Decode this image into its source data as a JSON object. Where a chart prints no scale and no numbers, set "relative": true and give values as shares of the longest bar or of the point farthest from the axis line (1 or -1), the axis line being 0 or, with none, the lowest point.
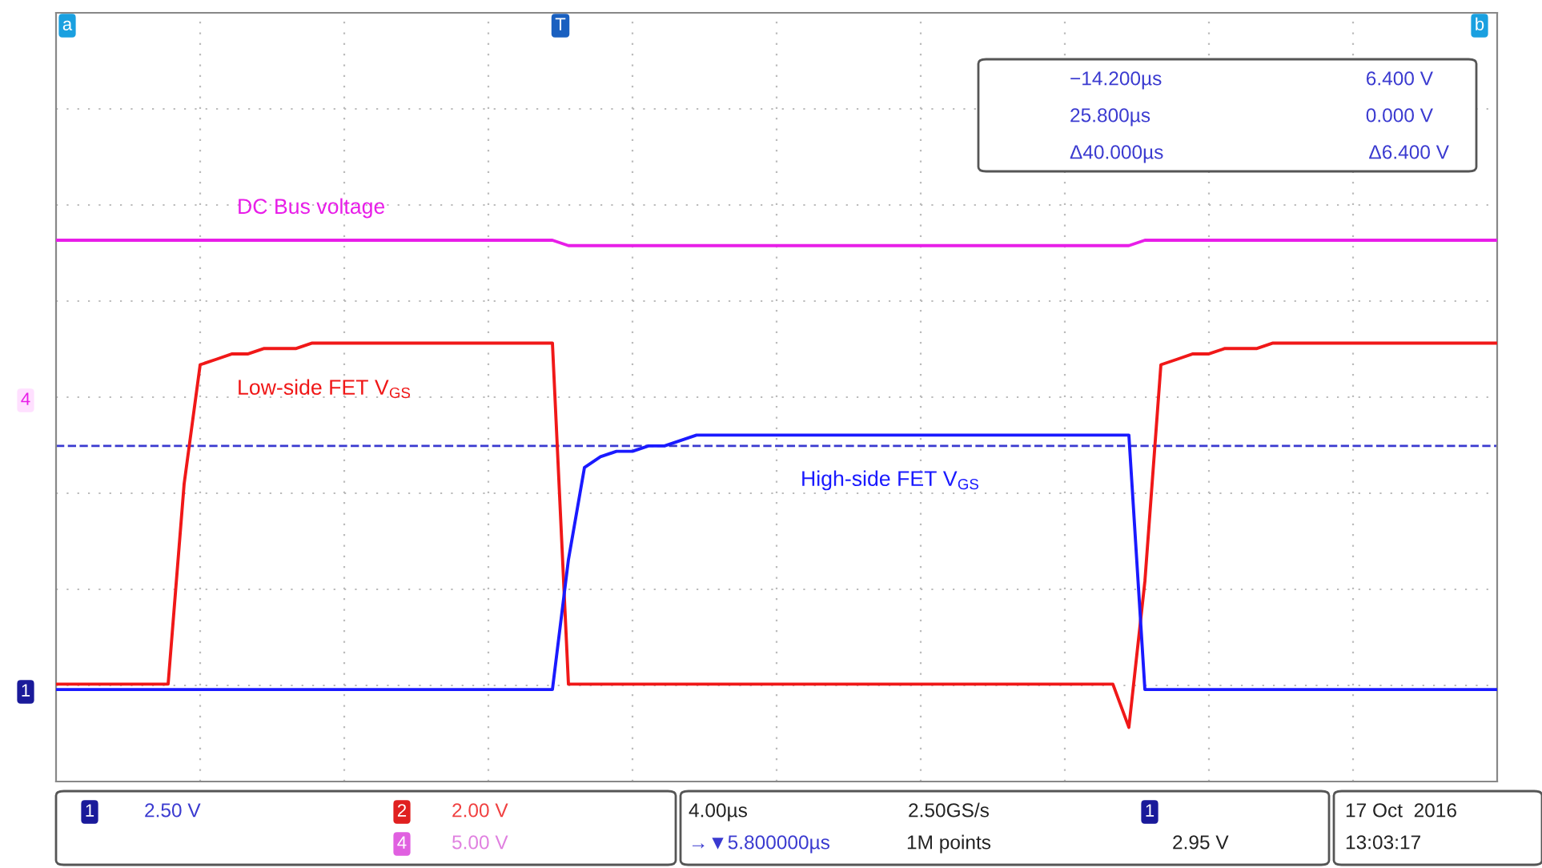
{
  "chart_data": {
    "type": "line",
    "relative": true,
    "grid": true,
    "line_style": "solid",
    "marker": "none",
    "categories": [
      null,
      null,
      null,
      null,
      null,
      null,
      null,
      null,
      null,
      null,
      null,
      null,
      null,
      null,
      null,
      null,
      null,
      null,
      null,
      null,
      null,
      null,
      null,
      null,
      null,
      null,
      null,
      null,
      null,
      null,
      null,
      null,
      null,
      null,
      null,
      null,
      null,
      null,
      null,
      null,
      null,
      null,
      null,
      null,
      null,
      null,
      null,
      null,
      null,
      null,
      null,
      null,
      null,
      null,
      null,
      null,
      null,
      null,
      null,
      null,
      null,
      null,
      null,
      null,
      null,
      null,
      null,
      null,
      null,
      null,
      null,
      null,
      null,
      null,
      null,
      null,
      null,
      null,
      null,
      null,
      null,
      null,
      null,
      null,
      null,
      null,
      null,
      null,
      null,
      null,
      null
    ],
    "series": [
      {
        "color": "#e81ee8",
        "values": [
          1,
          1,
          1,
          1,
          1,
          1,
          1,
          1,
          1,
          1,
          1,
          1,
          1,
          1,
          1,
          1,
          1,
          1,
          1,
          1,
          1,
          1,
          1,
          1,
          1,
          1,
          1,
          1,
          1,
          1,
          1,
          1,
          0.99,
          0.99,
          0.99,
          0.99,
          0.99,
          0.99,
          0.99,
          0.99,
          0.99,
          0.99,
          0.99,
          0.99,
          0.99,
          0.99,
          0.99,
          0.99,
          0.99,
          0.99,
          0.99,
          0.99,
          0.99,
          0.99,
          0.99,
          0.99,
          0.99,
          0.99,
          0.99,
          0.99,
          0.99,
          0.99,
          0.99,
          0.99,
          0.99,
          0.99,
          0.99,
          0.99,
          1,
          1,
          1,
          1,
          1,
          1,
          1,
          1,
          1,
          1,
          1,
          1,
          1,
          1,
          1,
          1,
          1,
          1,
          1,
          1,
          1,
          1,
          1
        ]
      },
      {
        "color": "#f01818",
        "values": [
          0.18,
          0.18,
          0.18,
          0.18,
          0.18,
          0.18,
          0.18,
          0.18,
          0.55,
          0.77,
          0.78,
          0.79,
          0.79,
          0.8,
          0.8,
          0.8,
          0.81,
          0.81,
          0.81,
          0.81,
          0.81,
          0.81,
          0.81,
          0.81,
          0.81,
          0.81,
          0.81,
          0.81,
          0.81,
          0.81,
          0.81,
          0.81,
          0.18,
          0.18,
          0.18,
          0.18,
          0.18,
          0.18,
          0.18,
          0.18,
          0.18,
          0.18,
          0.18,
          0.18,
          0.18,
          0.18,
          0.18,
          0.18,
          0.18,
          0.18,
          0.18,
          0.18,
          0.18,
          0.18,
          0.18,
          0.18,
          0.18,
          0.18,
          0.18,
          0.18,
          0.18,
          0.18,
          0.18,
          0.18,
          0.18,
          0.18,
          0.18,
          0.1,
          0.37,
          0.77,
          0.78,
          0.79,
          0.79,
          0.8,
          0.8,
          0.8,
          0.81,
          0.81,
          0.81,
          0.81,
          0.81,
          0.81,
          0.81,
          0.81,
          0.81,
          0.81,
          0.81,
          0.81,
          0.81,
          0.81,
          0.81
        ]
      },
      {
        "color": "#1a1aff",
        "values": [
          0.17,
          0.17,
          0.17,
          0.17,
          0.17,
          0.17,
          0.17,
          0.17,
          0.17,
          0.17,
          0.17,
          0.17,
          0.17,
          0.17,
          0.17,
          0.17,
          0.17,
          0.17,
          0.17,
          0.17,
          0.17,
          0.17,
          0.17,
          0.17,
          0.17,
          0.17,
          0.17,
          0.17,
          0.17,
          0.17,
          0.17,
          0.17,
          0.41,
          0.58,
          0.6,
          0.61,
          0.61,
          0.62,
          0.62,
          0.63,
          0.64,
          0.64,
          0.64,
          0.64,
          0.64,
          0.64,
          0.64,
          0.64,
          0.64,
          0.64,
          0.64,
          0.64,
          0.64,
          0.64,
          0.64,
          0.64,
          0.64,
          0.64,
          0.64,
          0.64,
          0.64,
          0.64,
          0.64,
          0.64,
          0.64,
          0.64,
          0.64,
          0.64,
          0.17,
          0.17,
          0.17,
          0.17,
          0.17,
          0.17,
          0.17,
          0.17,
          0.17,
          0.17,
          0.17,
          0.17,
          0.17,
          0.17,
          0.17,
          0.17,
          0.17,
          0.17,
          0.17,
          0.17,
          0.17,
          0.17,
          0.17
        ]
      }
    ],
    "ref_lines": [
      {
        "axis": "y",
        "value": 0.62,
        "color": "#3a3ad0",
        "line_style": "dashed"
      }
    ],
    "annotations": [
      "DC Bus voltage",
      "Low-side FET V$_{GS}$",
      "High-side FET V$_{GS}$",
      "a",
      "b",
      "T",
      "1",
      "4",
      "−14.200µs",
      "6.400 V",
      "25.800µs",
      "0.000 V",
      "Δ40.000µs",
      "Δ6.400 V",
      "1",
      "2.50 V",
      "2",
      "2.00 V",
      "4",
      "5.00 V",
      "4.00µs",
      "2.50GS/s",
      "→▼5.800000µs",
      "1M points",
      "1",
      "2.95 V",
      "17 Oct  2016",
      "13:03:17"
    ]
  }
}
